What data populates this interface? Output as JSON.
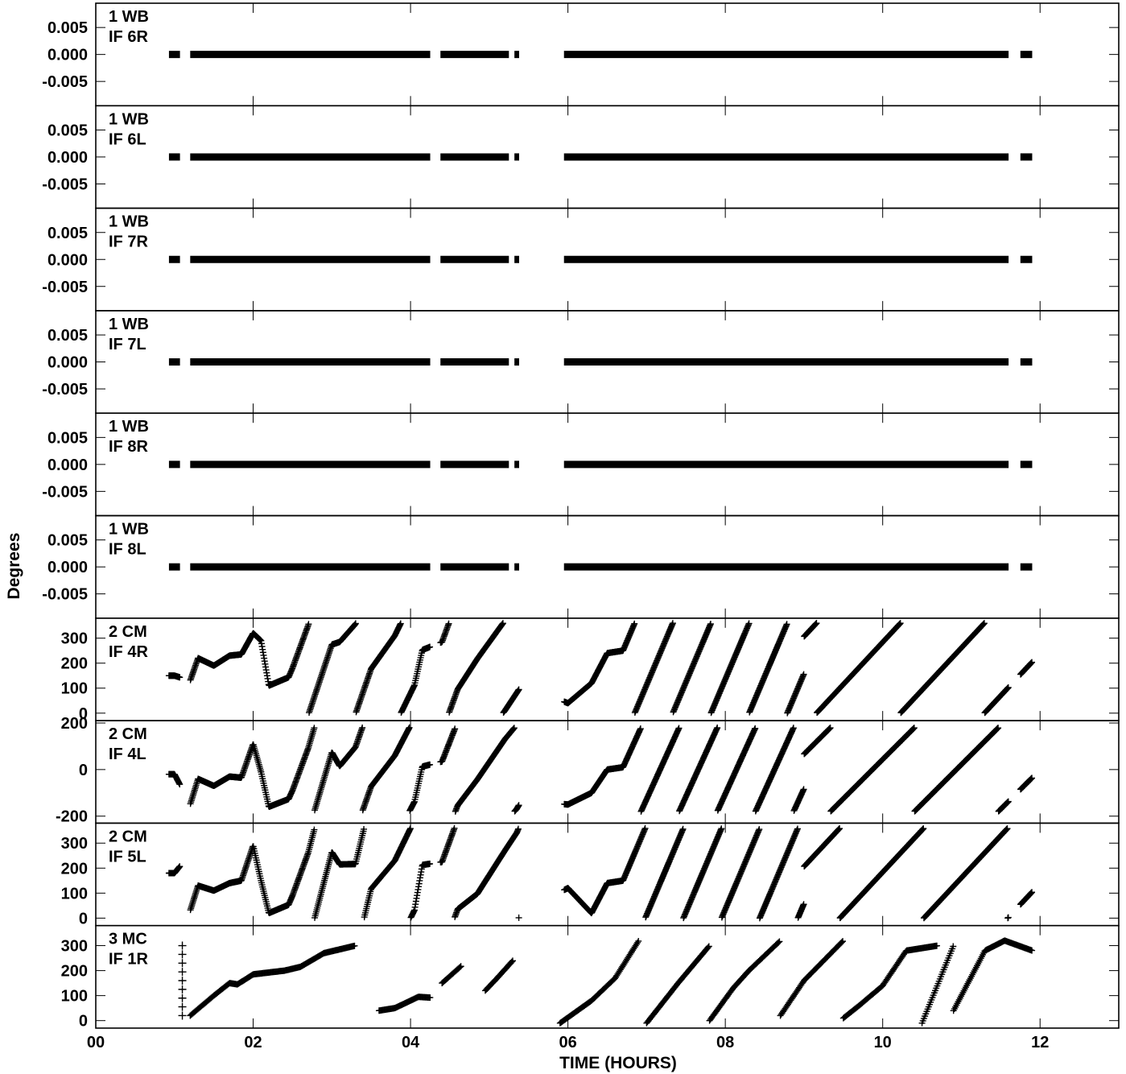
{
  "chart_data": {
    "type": "scatter",
    "ylabel": "Degrees",
    "xlabel": "TIME (HOURS)",
    "xlim": [
      0,
      13
    ],
    "x_ticks": [
      "00",
      "02",
      "04",
      "06",
      "08",
      "10",
      "12"
    ],
    "marker": "+",
    "panels": [
      {
        "label1": "1 WB",
        "label2": "IF 6R",
        "ylim": [
          -0.0095,
          0.0095
        ],
        "yticks": [
          "0.005",
          "0.000",
          "-0.005"
        ],
        "kind": "flat",
        "segments": [
          [
            0.93,
            1.07
          ],
          [
            1.2,
            4.25
          ],
          [
            4.38,
            5.25
          ],
          [
            5.32,
            5.38
          ],
          [
            5.95,
            11.6
          ],
          [
            11.75,
            11.9
          ]
        ]
      },
      {
        "label1": "1 WB",
        "label2": "IF 6L",
        "ylim": [
          -0.0095,
          0.0095
        ],
        "yticks": [
          "0.005",
          "0.000",
          "-0.005"
        ],
        "kind": "flat",
        "segments": [
          [
            0.93,
            1.07
          ],
          [
            1.2,
            4.25
          ],
          [
            4.38,
            5.25
          ],
          [
            5.32,
            5.38
          ],
          [
            5.95,
            11.6
          ],
          [
            11.75,
            11.9
          ]
        ]
      },
      {
        "label1": "1 WB",
        "label2": "IF 7R",
        "ylim": [
          -0.0095,
          0.0095
        ],
        "yticks": [
          "0.005",
          "0.000",
          "-0.005"
        ],
        "kind": "flat",
        "segments": [
          [
            0.93,
            1.07
          ],
          [
            1.2,
            4.25
          ],
          [
            4.38,
            5.25
          ],
          [
            5.32,
            5.38
          ],
          [
            5.95,
            11.6
          ],
          [
            11.75,
            11.9
          ]
        ]
      },
      {
        "label1": "1 WB",
        "label2": "IF 7L",
        "ylim": [
          -0.0095,
          0.0095
        ],
        "yticks": [
          "0.005",
          "0.000",
          "-0.005"
        ],
        "kind": "flat",
        "segments": [
          [
            0.93,
            1.07
          ],
          [
            1.2,
            4.25
          ],
          [
            4.38,
            5.25
          ],
          [
            5.32,
            5.38
          ],
          [
            5.95,
            11.6
          ],
          [
            11.75,
            11.9
          ]
        ]
      },
      {
        "label1": "1 WB",
        "label2": "IF 8R",
        "ylim": [
          -0.0095,
          0.0095
        ],
        "yticks": [
          "0.005",
          "0.000",
          "-0.005"
        ],
        "kind": "flat",
        "segments": [
          [
            0.93,
            1.07
          ],
          [
            1.2,
            4.25
          ],
          [
            4.38,
            5.25
          ],
          [
            5.32,
            5.38
          ],
          [
            5.95,
            11.6
          ],
          [
            11.75,
            11.9
          ]
        ]
      },
      {
        "label1": "1 WB",
        "label2": "IF 8L",
        "ylim": [
          -0.0095,
          0.0095
        ],
        "yticks": [
          "0.005",
          "0.000",
          "-0.005"
        ],
        "kind": "flat",
        "segments": [
          [
            0.93,
            1.07
          ],
          [
            1.2,
            4.25
          ],
          [
            4.38,
            5.25
          ],
          [
            5.32,
            5.38
          ],
          [
            5.95,
            11.6
          ],
          [
            11.75,
            11.9
          ]
        ]
      },
      {
        "label1": "2 CM",
        "label2": "IF 4R",
        "ylim": [
          -30,
          380
        ],
        "yticks": [
          "300",
          "200",
          "100",
          "0"
        ],
        "kind": "wrap",
        "range": [
          0,
          360
        ],
        "base": [
          [
            1.0,
            150
          ],
          [
            1.2,
            130
          ],
          [
            1.3,
            220
          ],
          [
            1.5,
            190
          ],
          [
            1.7,
            230
          ],
          [
            1.85,
            235
          ],
          [
            2.0,
            320
          ],
          [
            2.1,
            290
          ],
          [
            2.2,
            110
          ],
          [
            2.5,
            150
          ],
          [
            2.7,
            200
          ],
          [
            3.0,
            300
          ],
          [
            3.1,
            250
          ],
          [
            3.3,
            200
          ],
          [
            3.5,
            260
          ],
          [
            3.8,
            210
          ],
          [
            4.05,
            220
          ],
          [
            4.15,
            300
          ],
          [
            4.4,
            180
          ],
          [
            4.6,
            230
          ],
          [
            4.85,
            200
          ],
          [
            5.2,
            140
          ],
          [
            5.35,
            120
          ],
          [
            6.0,
            40
          ],
          [
            6.3,
            120
          ],
          [
            6.5,
            240
          ],
          [
            6.7,
            250
          ]
        ],
        "rate": 1350
      },
      {
        "label1": "2 CM",
        "label2": "IF 4L",
        "ylim": [
          -230,
          210
        ],
        "yticks": [
          "200",
          "0",
          "-200"
        ],
        "kind": "wrap",
        "range": [
          -180,
          180
        ],
        "base": [
          [
            1.0,
            -20
          ],
          [
            1.2,
            -150
          ],
          [
            1.3,
            -40
          ],
          [
            1.5,
            -70
          ],
          [
            1.7,
            -30
          ],
          [
            1.85,
            -35
          ],
          [
            2.0,
            110
          ],
          [
            2.1,
            -10
          ],
          [
            2.2,
            -160
          ],
          [
            2.5,
            -120
          ],
          [
            2.7,
            -60
          ],
          [
            3.0,
            100
          ],
          [
            3.1,
            -20
          ],
          [
            3.3,
            -60
          ],
          [
            3.5,
            10
          ],
          [
            3.8,
            -40
          ],
          [
            4.05,
            -30
          ],
          [
            4.15,
            60
          ],
          [
            4.4,
            -70
          ],
          [
            4.6,
            -20
          ],
          [
            4.85,
            -60
          ],
          [
            5.2,
            -100
          ],
          [
            5.35,
            -130
          ],
          [
            6.0,
            -150
          ],
          [
            6.3,
            -100
          ],
          [
            6.5,
            0
          ],
          [
            6.7,
            10
          ]
        ],
        "rate": 1350
      },
      {
        "label1": "2 CM",
        "label2": "IF 5L",
        "ylim": [
          -30,
          380
        ],
        "yticks": [
          "300",
          "200",
          "100",
          "0"
        ],
        "kind": "wrap",
        "range": [
          0,
          360
        ],
        "base": [
          [
            1.0,
            180
          ],
          [
            1.1,
            220
          ],
          [
            1.2,
            30
          ],
          [
            1.3,
            130
          ],
          [
            1.5,
            110
          ],
          [
            1.7,
            140
          ],
          [
            1.85,
            150
          ],
          [
            2.0,
            290
          ],
          [
            2.1,
            150
          ],
          [
            2.2,
            20
          ],
          [
            2.5,
            60
          ],
          [
            2.7,
            110
          ],
          [
            3.0,
            290
          ],
          [
            3.1,
            180
          ],
          [
            3.3,
            60
          ],
          [
            3.5,
            200
          ],
          [
            3.8,
            130
          ],
          [
            4.05,
            140
          ],
          [
            4.15,
            260
          ],
          [
            4.4,
            120
          ],
          [
            4.6,
            170
          ],
          [
            4.85,
            80
          ],
          [
            5.2,
            40
          ],
          [
            5.35,
            20
          ],
          [
            6.0,
            120
          ],
          [
            6.3,
            20
          ],
          [
            6.5,
            140
          ],
          [
            6.7,
            150
          ]
        ],
        "rate": 1350
      },
      {
        "label1": "3 MC",
        "label2": "IF 1R",
        "ylim": [
          -30,
          380
        ],
        "yticks": [
          "300",
          "200",
          "100",
          "0"
        ],
        "kind": "track",
        "range": [
          0,
          360
        ],
        "tracks": [
          [
            [
              1.2,
              20
            ],
            [
              1.5,
              100
            ],
            [
              1.7,
              150
            ],
            [
              1.8,
              145
            ],
            [
              2.0,
              185
            ],
            [
              2.4,
              200
            ],
            [
              2.6,
              215
            ],
            [
              2.9,
              270
            ],
            [
              3.3,
              300
            ]
          ],
          [
            [
              3.6,
              40
            ],
            [
              3.8,
              50
            ],
            [
              4.1,
              95
            ],
            [
              4.25,
              92
            ]
          ],
          [
            [
              4.4,
              150
            ],
            [
              4.65,
              220
            ]
          ],
          [
            [
              4.95,
              120
            ],
            [
              5.1,
              170
            ],
            [
              5.3,
              240
            ]
          ],
          [
            [
              5.9,
              -10
            ],
            [
              6.3,
              80
            ],
            [
              6.6,
              170
            ],
            [
              6.9,
              320
            ]
          ],
          [
            [
              7.0,
              -10
            ],
            [
              7.4,
              150
            ],
            [
              7.8,
              300
            ]
          ],
          [
            [
              7.8,
              0
            ],
            [
              8.1,
              130
            ],
            [
              8.3,
              200
            ],
            [
              8.7,
              320
            ]
          ],
          [
            [
              8.7,
              20
            ],
            [
              9.0,
              160
            ],
            [
              9.5,
              320
            ]
          ],
          [
            [
              9.5,
              10
            ],
            [
              9.7,
              60
            ],
            [
              9.85,
              100
            ],
            [
              10.0,
              140
            ],
            [
              10.3,
              280
            ],
            [
              10.7,
              300
            ]
          ],
          [
            [
              10.5,
              -10
            ],
            [
              10.9,
              300
            ]
          ],
          [
            [
              10.9,
              40
            ],
            [
              11.3,
              280
            ],
            [
              11.55,
              320
            ],
            [
              11.9,
              280
            ]
          ]
        ]
      }
    ]
  }
}
